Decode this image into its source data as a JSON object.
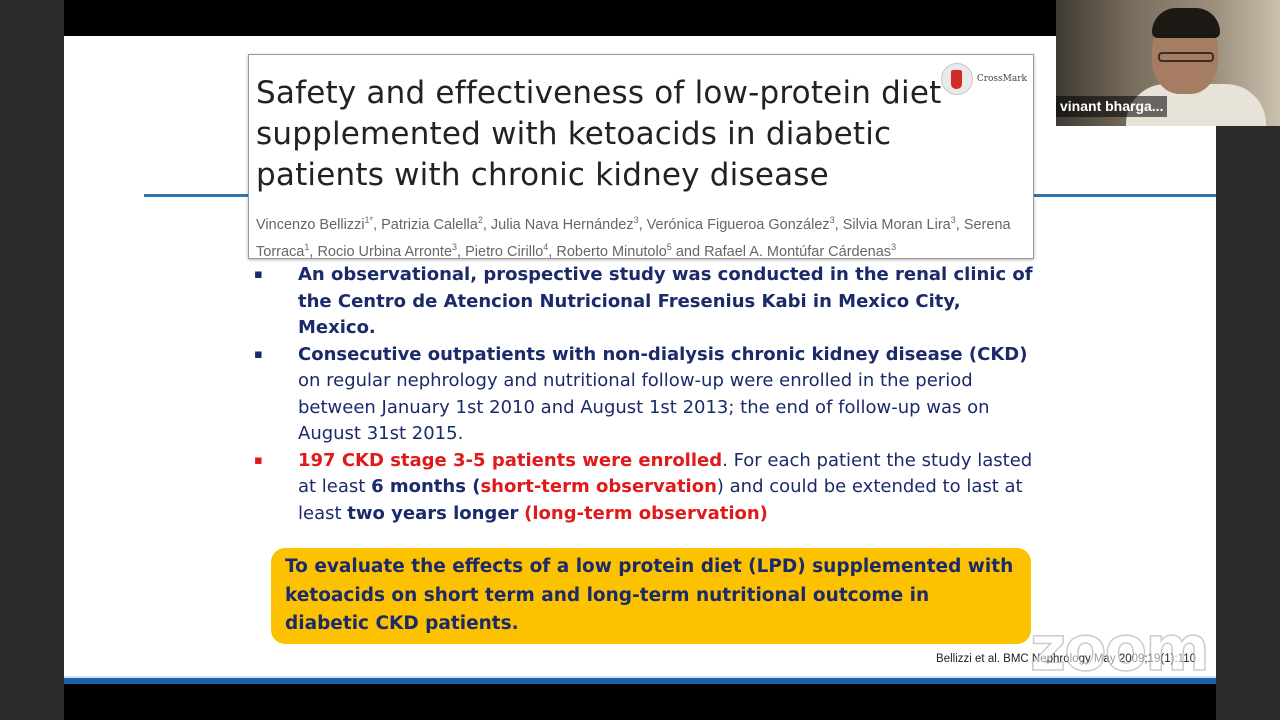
{
  "paper": {
    "title": "Safety and effectiveness of low-protein diet supplemented with ketoacids in diabetic patients with chronic kidney disease",
    "crossmark_label": "CrossMark",
    "authors": [
      {
        "name": "Vincenzo Bellizzi",
        "sup": "1*"
      },
      {
        "name": "Patrizia Calella",
        "sup": "2"
      },
      {
        "name": "Julia Nava Hernández",
        "sup": "3"
      },
      {
        "name": "Verónica Figueroa González",
        "sup": "3"
      },
      {
        "name": "Silvia Moran Lira",
        "sup": "3"
      },
      {
        "name": "Serena Torraca",
        "sup": "1"
      },
      {
        "name": "Rocio Urbina Arronte",
        "sup": "3"
      },
      {
        "name": "Pietro Cirillo",
        "sup": "4"
      },
      {
        "name": "Roberto Minutolo",
        "sup": "5"
      },
      {
        "name": "Rafael A. Montúfar Cárdenas",
        "sup": "3"
      }
    ],
    "and_word": "and"
  },
  "bullet_marker": "▪",
  "bullets": [
    [
      {
        "text": "An observational, prospective study was conducted in the renal clinic of the Centro de Atencion Nutricional Fresenius Kabi in Mexico City, Mexico.",
        "style": "bold"
      }
    ],
    [
      {
        "text": "Consecutive outpatients with non-dialysis chronic kidney disease (CKD)",
        "style": "bold"
      },
      {
        "text": " on regular nephrology and nutritional follow-up were enrolled in the period between January 1st 2010 and August 1st 2013; the end of follow-up was on August 31st 2015.",
        "style": "normal"
      }
    ],
    [
      {
        "text": "197 CKD stage 3-5 patients were enrolled",
        "style": "red"
      },
      {
        "text": ". For each patient the study lasted at least ",
        "style": "normal"
      },
      {
        "text": "6 months",
        "style": "bold"
      },
      {
        "text": " (",
        "style": "bold"
      },
      {
        "text": "short-term observation",
        "style": "red"
      },
      {
        "text": ") and could be extended to last at least ",
        "style": "normal"
      },
      {
        "text": "two years longer",
        "style": "bold"
      },
      {
        "text": " ",
        "style": "normal"
      },
      {
        "text": "(long-term observation)",
        "style": "red"
      }
    ]
  ],
  "bullet_marker_colors": [
    "#1b2a6b",
    "#1b2a6b",
    "#e01a1a"
  ],
  "objective": "To evaluate the effects of a low protein diet (LPD) supplemented with ketoacids on short term and long-term nutritional outcome in diabetic CKD patients.",
  "citation": "Bellizzi et al. BMC Nephrology May 2009;19(1):110",
  "watermark": "zoom",
  "participant": {
    "name": "vinant bharga..."
  },
  "colors": {
    "navy_text": "#1b2a6b",
    "highlight_red": "#e01a1a",
    "objective_box": "#fcc200",
    "accent_blue_rule": "#2e75b6",
    "crossmark_red": "#d32a2a"
  }
}
